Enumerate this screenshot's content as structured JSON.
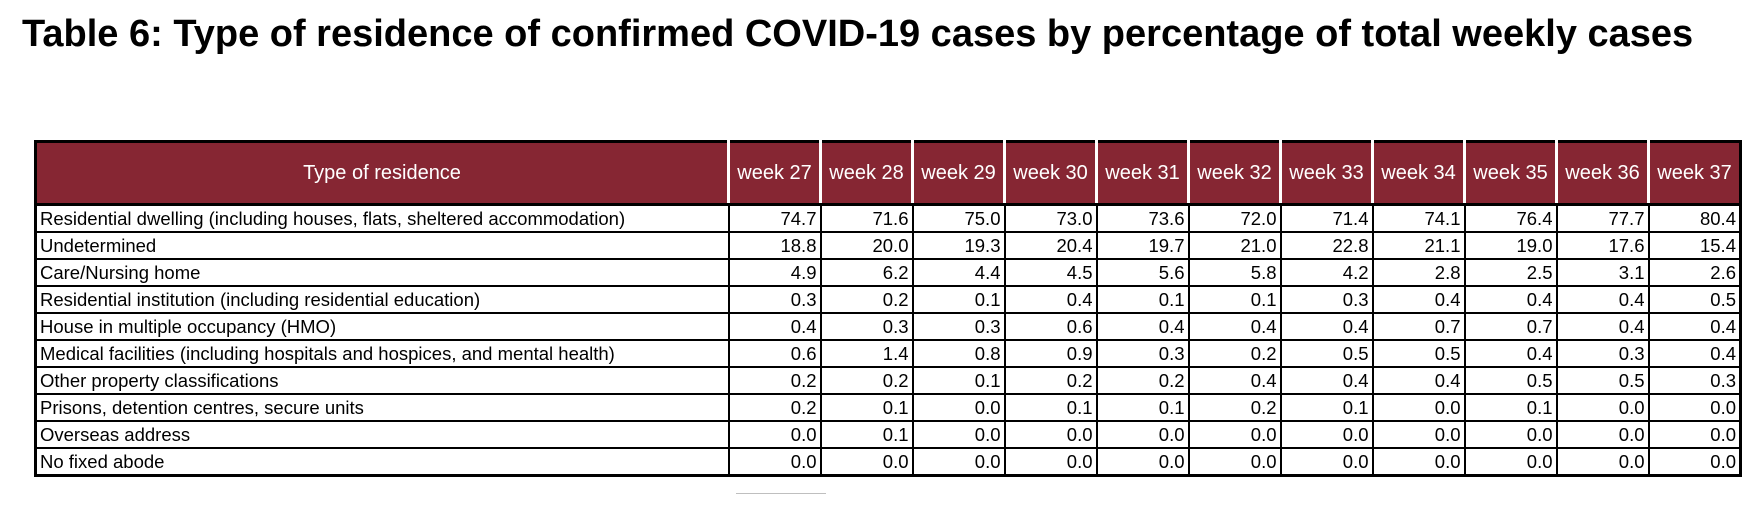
{
  "title": "Table 6: Type of residence of confirmed COVID-19 cases by percentage of total weekly cases",
  "table": {
    "first_header": "Type of residence",
    "weeks": [
      "week 27",
      "week 28",
      "week 29",
      "week 30",
      "week 31",
      "week 32",
      "week 33",
      "week 34",
      "week 35",
      "week 36",
      "week 37"
    ],
    "rows": [
      {
        "label": "Residential dwelling (including houses, flats, sheltered accommodation)",
        "values": [
          "74.7",
          "71.6",
          "75.0",
          "73.0",
          "73.6",
          "72.0",
          "71.4",
          "74.1",
          "76.4",
          "77.7",
          "80.4"
        ]
      },
      {
        "label": "Undetermined",
        "values": [
          "18.8",
          "20.0",
          "19.3",
          "20.4",
          "19.7",
          "21.0",
          "22.8",
          "21.1",
          "19.0",
          "17.6",
          "15.4"
        ]
      },
      {
        "label": "Care/Nursing home",
        "values": [
          "4.9",
          "6.2",
          "4.4",
          "4.5",
          "5.6",
          "5.8",
          "4.2",
          "2.8",
          "2.5",
          "3.1",
          "2.6"
        ]
      },
      {
        "label": "Residential institution (including residential education)",
        "values": [
          "0.3",
          "0.2",
          "0.1",
          "0.4",
          "0.1",
          "0.1",
          "0.3",
          "0.4",
          "0.4",
          "0.4",
          "0.5"
        ]
      },
      {
        "label": "House in multiple occupancy (HMO)",
        "values": [
          "0.4",
          "0.3",
          "0.3",
          "0.6",
          "0.4",
          "0.4",
          "0.4",
          "0.7",
          "0.7",
          "0.4",
          "0.4"
        ]
      },
      {
        "label": "Medical facilities (including hospitals and hospices, and mental health)",
        "values": [
          "0.6",
          "1.4",
          "0.8",
          "0.9",
          "0.3",
          "0.2",
          "0.5",
          "0.5",
          "0.4",
          "0.3",
          "0.4"
        ]
      },
      {
        "label": "Other property classifications",
        "values": [
          "0.2",
          "0.2",
          "0.1",
          "0.2",
          "0.2",
          "0.4",
          "0.4",
          "0.4",
          "0.5",
          "0.5",
          "0.3"
        ]
      },
      {
        "label": "Prisons, detention centres, secure units",
        "values": [
          "0.2",
          "0.1",
          "0.0",
          "0.1",
          "0.1",
          "0.2",
          "0.1",
          "0.0",
          "0.1",
          "0.0",
          "0.0"
        ]
      },
      {
        "label": "Overseas address",
        "values": [
          "0.0",
          "0.1",
          "0.0",
          "0.0",
          "0.0",
          "0.0",
          "0.0",
          "0.0",
          "0.0",
          "0.0",
          "0.0"
        ]
      },
      {
        "label": "No fixed abode",
        "values": [
          "0.0",
          "0.0",
          "0.0",
          "0.0",
          "0.0",
          "0.0",
          "0.0",
          "0.0",
          "0.0",
          "0.0",
          "0.0"
        ]
      }
    ]
  },
  "colors": {
    "header_background": "#862633",
    "header_text": "#ffffff"
  }
}
